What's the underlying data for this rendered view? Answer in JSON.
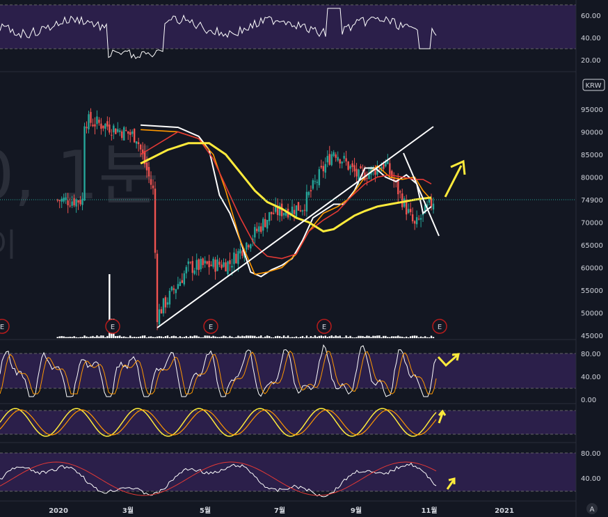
{
  "watermark": {
    "line1": "0, 1분",
    "line2": "이"
  },
  "currency_badge": "KRW",
  "price_label": "74900",
  "corner_badge": "A",
  "earnings_marker": "E",
  "colors": {
    "background": "#131722",
    "band": "#2b1f4a",
    "candle_up": "#26a69a",
    "candle_down": "#ef5350",
    "ma_short": "#ffffff",
    "ma_orange": "#ff9800",
    "ma_red": "#e53935",
    "ma_yellow": "#ffeb3b",
    "annotation": "#ffeb3b",
    "trendline": "#ffffff",
    "price_badge_bg": "#2962ff",
    "price_line": "#26a69a"
  },
  "chart_data": [
    {
      "type": "candlestick",
      "panel": "price",
      "currency": "KRW",
      "ylim": [
        45000,
        97000
      ],
      "yticks": [
        45000,
        50000,
        55000,
        60000,
        65000,
        70000,
        75000,
        80000,
        85000,
        90000,
        95000
      ],
      "x_ticks": [
        "2020",
        "3월",
        "5월",
        "7월",
        "9월",
        "11월",
        "2021"
      ],
      "last_price": 74900,
      "earnings_markers_count": 5,
      "ohlc_approx_keypoints": [
        {
          "t": "2019-12",
          "close": 92500
        },
        {
          "t": "2020-01",
          "close": 91500
        },
        {
          "t": "2020-02",
          "close": 89000
        },
        {
          "t": "2020-02-late",
          "close": 77000
        },
        {
          "t": "2020-03-19",
          "close": 49500
        },
        {
          "t": "2020-04",
          "close": 60000
        },
        {
          "t": "2020-05",
          "close": 61000
        },
        {
          "t": "2020-06",
          "close": 72000
        },
        {
          "t": "2020-07",
          "close": 73500
        },
        {
          "t": "2020-08-late",
          "close": 86000
        },
        {
          "t": "2020-09",
          "close": 80000
        },
        {
          "t": "2020-10",
          "close": 83000
        },
        {
          "t": "2020-11-early",
          "close": 69000
        },
        {
          "t": "2020-11",
          "close": 74900
        }
      ],
      "moving_averages": [
        {
          "color": "#ffffff",
          "points": [
            [
              -8,
              91500
            ],
            [
              10,
              91000
            ],
            [
              20,
              89000
            ],
            [
              25,
              86000
            ],
            [
              30,
              76000
            ],
            [
              35,
              72000
            ],
            [
              40,
              66000
            ],
            [
              45,
              59000
            ],
            [
              50,
              58000
            ],
            [
              55,
              59500
            ],
            [
              60,
              60500
            ],
            [
              65,
              62000
            ],
            [
              70,
              66000
            ],
            [
              75,
              71000
            ],
            [
              80,
              72500
            ],
            [
              85,
              74000
            ],
            [
              90,
              74000
            ],
            [
              95,
              77000
            ],
            [
              100,
              82000
            ],
            [
              105,
              82000
            ],
            [
              110,
              80000
            ],
            [
              115,
              79000
            ],
            [
              120,
              80500
            ],
            [
              125,
              78500
            ],
            [
              128,
              72000
            ],
            [
              132,
              73500
            ]
          ]
        },
        {
          "color": "#ff9800",
          "points": [
            [
              -8,
              90500
            ],
            [
              10,
              90000
            ],
            [
              20,
              88500
            ],
            [
              27,
              85000
            ],
            [
              33,
              77000
            ],
            [
              40,
              66000
            ],
            [
              47,
              58500
            ],
            [
              53,
              59000
            ],
            [
              60,
              60000
            ],
            [
              67,
              63000
            ],
            [
              73,
              68000
            ],
            [
              80,
              72000
            ],
            [
              87,
              73500
            ],
            [
              93,
              75500
            ],
            [
              100,
              80000
            ],
            [
              106,
              82500
            ],
            [
              112,
              80000
            ],
            [
              118,
              79500
            ],
            [
              124,
              80000
            ],
            [
              128,
              77000
            ],
            [
              132,
              75000
            ]
          ]
        },
        {
          "color": "#e53935",
          "points": [
            [
              -8,
              85000
            ],
            [
              10,
              90000
            ],
            [
              20,
              88500
            ],
            [
              27,
              84000
            ],
            [
              33,
              78000
            ],
            [
              40,
              71000
            ],
            [
              47,
              65000
            ],
            [
              53,
              62500
            ],
            [
              60,
              62000
            ],
            [
              67,
              63000
            ],
            [
              73,
              68000
            ],
            [
              80,
              70500
            ],
            [
              87,
              72500
            ],
            [
              93,
              75500
            ],
            [
              100,
              78500
            ],
            [
              106,
              80000
            ],
            [
              112,
              80500
            ],
            [
              118,
              80000
            ],
            [
              124,
              79500
            ],
            [
              128,
              79500
            ],
            [
              132,
              78500
            ]
          ]
        },
        {
          "color": "#ffeb3b",
          "points": [
            [
              -8,
              83000
            ],
            [
              5,
              86000
            ],
            [
              15,
              87500
            ],
            [
              25,
              87500
            ],
            [
              33,
              85000
            ],
            [
              40,
              81000
            ],
            [
              47,
              77000
            ],
            [
              53,
              74500
            ],
            [
              60,
              73000
            ],
            [
              67,
              71000
            ],
            [
              73,
              70000
            ],
            [
              80,
              68000
            ],
            [
              85,
              68500
            ],
            [
              90,
              70000
            ],
            [
              95,
              71500
            ],
            [
              100,
              72500
            ],
            [
              106,
              73500
            ],
            [
              112,
              74000
            ],
            [
              118,
              74500
            ],
            [
              124,
              75000
            ],
            [
              132,
              75500
            ]
          ]
        }
      ],
      "annotations": [
        {
          "kind": "trendline",
          "from": [
            50,
            47000
          ],
          "to": [
            133,
            91000
          ]
        },
        {
          "kind": "trendline",
          "from": [
            124,
            85000
          ],
          "to": [
            134,
            67000
          ]
        },
        {
          "kind": "arrow",
          "direction": "up-right",
          "color": "#ffeb3b"
        }
      ]
    },
    {
      "type": "line",
      "panel": "top-oscillator",
      "ylim": [
        15,
        75
      ],
      "yticks": [
        20,
        40,
        60
      ],
      "band": [
        30,
        70
      ]
    },
    {
      "type": "line",
      "panel": "stochastic",
      "ylim": [
        0,
        90
      ],
      "yticks": [
        0,
        40,
        80
      ],
      "band": [
        20,
        80
      ]
    },
    {
      "type": "line",
      "panel": "stoch-rsi-orange",
      "band": [
        20,
        80
      ]
    },
    {
      "type": "line",
      "panel": "bottom-oscillator",
      "ylim": [
        25,
        90
      ],
      "yticks": [
        40,
        80
      ],
      "band": [
        30,
        85
      ]
    }
  ]
}
